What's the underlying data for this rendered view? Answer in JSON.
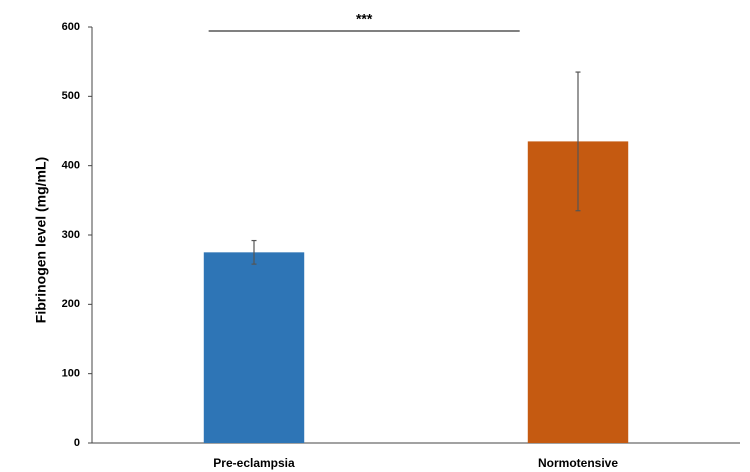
{
  "chart_data": {
    "type": "bar",
    "y_label": "Fibrinogen level (mg/mL)",
    "categories": [
      "Pre-eclampsia",
      "Normotensive"
    ],
    "values": [
      275,
      435
    ],
    "errors": [
      17,
      100
    ],
    "colors": [
      "#2e75b6",
      "#c55a11"
    ],
    "ylim": [
      0,
      600
    ],
    "yticks": [
      0,
      100,
      200,
      300,
      400,
      500,
      600
    ],
    "grid": false,
    "annotation": "***"
  }
}
